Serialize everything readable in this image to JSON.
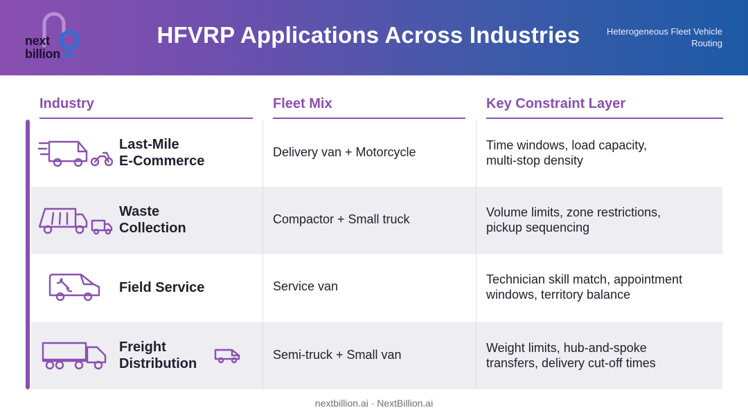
{
  "header": {
    "logo": {
      "line1": "next",
      "line2": "billion",
      "line2_suffix": ".ai"
    },
    "title": "HFVRP Applications Across Industries",
    "subtitle": "Heterogeneous Fleet Vehicle Routing"
  },
  "columns": {
    "industry": "Industry",
    "fleet_mix": "Fleet Mix",
    "constraint": "Key Constraint Layer"
  },
  "rows": [
    {
      "industry_line1": "Last-Mile",
      "industry_line2": "E-Commerce",
      "fleet_mix": "Delivery van + Motorcycle",
      "constraint_line1": "Time windows, load capacity,",
      "constraint_line2": "multi-stop density",
      "icons": [
        "speeding-van-icon",
        "motorcycle-icon"
      ]
    },
    {
      "industry_line1": "Waste",
      "industry_line2": "Collection",
      "fleet_mix": "Compactor + Small truck",
      "constraint_line1": "Volume limits, zone restrictions,",
      "constraint_line2": "pickup sequencing",
      "icons": [
        "garbage-truck-icon",
        "small-truck-icon"
      ]
    },
    {
      "industry_line1": "Field Service",
      "industry_line2": "",
      "fleet_mix": "Service van",
      "constraint_line1": "Technician skill match, appointment",
      "constraint_line2": "windows, territory balance",
      "icons": [
        "service-van-wrench-icon"
      ]
    },
    {
      "industry_line1": "Freight",
      "industry_line2": "Distribution",
      "fleet_mix": "Semi-truck + Small van",
      "constraint_line1": "Weight limits, hub-and-spoke",
      "constraint_line2": "transfers, delivery cut-off times",
      "icons": [
        "semi-truck-icon",
        "small-van-icon"
      ]
    }
  ],
  "footer": "nextbillion.ai · NextBillion.ai",
  "colors": {
    "accent": "#8a4fb0",
    "header_start": "#8a4fb0",
    "header_end": "#1d5aa6",
    "row_shade": "#eeedf2"
  }
}
